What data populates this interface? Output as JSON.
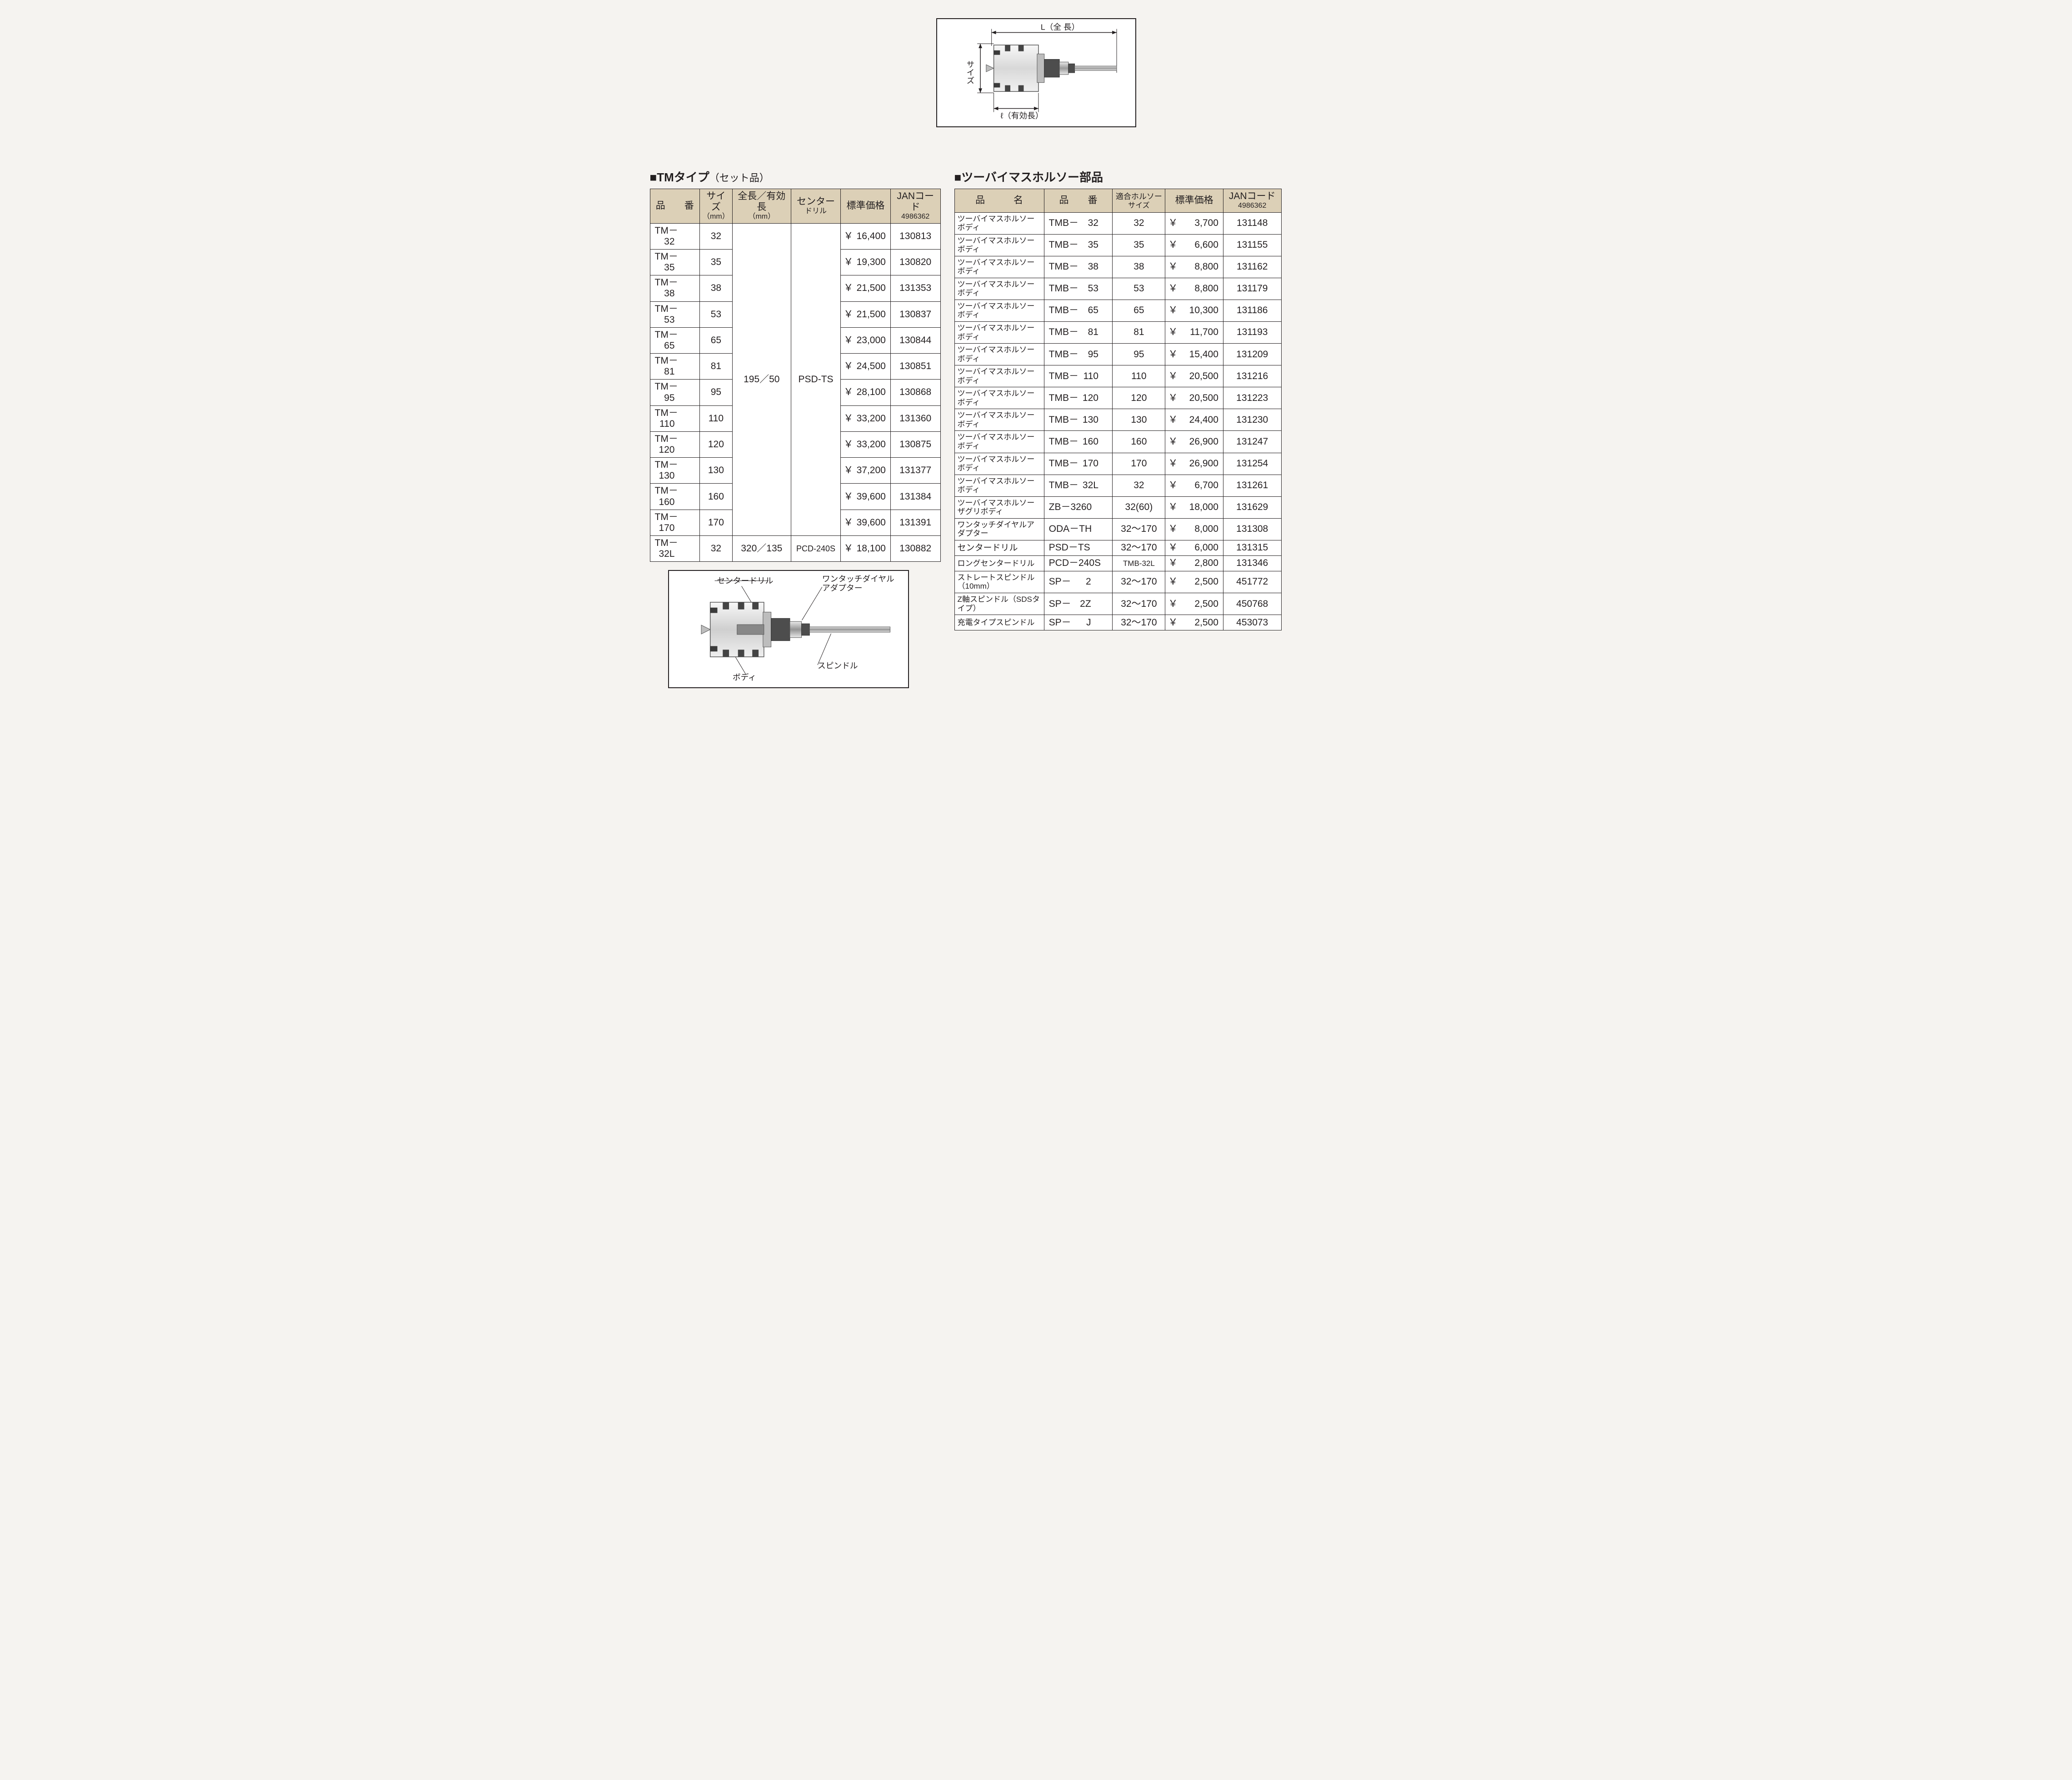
{
  "colors": {
    "page_bg": "#f5f3f0",
    "header_bg": "#dcd0b7",
    "border": "#231f20",
    "text": "#231f20",
    "cell_bg": "#ffffff"
  },
  "topDiagram": {
    "labels": {
      "length": "L（全 長）",
      "size": "サイズ",
      "effective": "ℓ（有効長）"
    }
  },
  "bottomDiagram": {
    "labels": {
      "centerDrill": "センタードリル",
      "oneTouch": "ワンタッチダイヤル\nアダプター",
      "spindle": "スピンドル",
      "body": "ボディ"
    }
  },
  "tmSection": {
    "title": "TMタイプ",
    "subtitle": "（セット品）",
    "headers": {
      "code": "品　　番",
      "size": "サイズ",
      "size_sub": "（mm）",
      "length": "全長／有効長",
      "length_sub": "（mm）",
      "drill": "センター",
      "drill_sub": "ドリル",
      "price": "標準価格",
      "jan": "JANコード",
      "jan_sub": "4986362"
    },
    "shared": {
      "length": "195／50",
      "drill": "PSD-TS"
    },
    "rows": [
      {
        "codePre": "TM－",
        "codeNum": "32",
        "size": "32",
        "price": "16,400",
        "jan": "130813"
      },
      {
        "codePre": "TM－",
        "codeNum": "35",
        "size": "35",
        "price": "19,300",
        "jan": "130820"
      },
      {
        "codePre": "TM－",
        "codeNum": "38",
        "size": "38",
        "price": "21,500",
        "jan": "131353"
      },
      {
        "codePre": "TM－",
        "codeNum": "53",
        "size": "53",
        "price": "21,500",
        "jan": "130837"
      },
      {
        "codePre": "TM－",
        "codeNum": "65",
        "size": "65",
        "price": "23,000",
        "jan": "130844"
      },
      {
        "codePre": "TM－",
        "codeNum": "81",
        "size": "81",
        "price": "24,500",
        "jan": "130851"
      },
      {
        "codePre": "TM－",
        "codeNum": "95",
        "size": "95",
        "price": "28,100",
        "jan": "130868"
      },
      {
        "codePre": "TM－",
        "codeNum": "110",
        "size": "110",
        "price": "33,200",
        "jan": "131360"
      },
      {
        "codePre": "TM－",
        "codeNum": "120",
        "size": "120",
        "price": "33,200",
        "jan": "130875"
      },
      {
        "codePre": "TM－",
        "codeNum": "130",
        "size": "130",
        "price": "37,200",
        "jan": "131377"
      },
      {
        "codePre": "TM－",
        "codeNum": "160",
        "size": "160",
        "price": "39,600",
        "jan": "131384"
      },
      {
        "codePre": "TM－",
        "codeNum": "170",
        "size": "170",
        "price": "39,600",
        "jan": "131391"
      }
    ],
    "lastRow": {
      "codePre": "TM－",
      "codeNum": "32L",
      "size": "32",
      "length": "320／135",
      "drill": "PCD-240S",
      "price": "18,100",
      "jan": "130882"
    }
  },
  "partsSection": {
    "title": "ツーバイマスホルソー部品",
    "headers": {
      "name": "品　　　名",
      "code": "品　　番",
      "fit": "適合ホルソー",
      "fit_sub": "サイズ",
      "price": "標準価格",
      "jan": "JANコード",
      "jan_sub": "4986362"
    },
    "rows": [
      {
        "name": "ツーバイマスホルソーボディ",
        "codePre": "TMB－",
        "codeNum": "32",
        "fit": "32",
        "price": "3,700",
        "jan": "131148"
      },
      {
        "name": "ツーバイマスホルソーボディ",
        "codePre": "TMB－",
        "codeNum": "35",
        "fit": "35",
        "price": "6,600",
        "jan": "131155"
      },
      {
        "name": "ツーバイマスホルソーボディ",
        "codePre": "TMB－",
        "codeNum": "38",
        "fit": "38",
        "price": "8,800",
        "jan": "131162"
      },
      {
        "name": "ツーバイマスホルソーボディ",
        "codePre": "TMB－",
        "codeNum": "53",
        "fit": "53",
        "price": "8,800",
        "jan": "131179"
      },
      {
        "name": "ツーバイマスホルソーボディ",
        "codePre": "TMB－",
        "codeNum": "65",
        "fit": "65",
        "price": "10,300",
        "jan": "131186"
      },
      {
        "name": "ツーバイマスホルソーボディ",
        "codePre": "TMB－",
        "codeNum": "81",
        "fit": "81",
        "price": "11,700",
        "jan": "131193"
      },
      {
        "name": "ツーバイマスホルソーボディ",
        "codePre": "TMB－",
        "codeNum": "95",
        "fit": "95",
        "price": "15,400",
        "jan": "131209"
      },
      {
        "name": "ツーバイマスホルソーボディ",
        "codePre": "TMB－",
        "codeNum": "110",
        "fit": "110",
        "price": "20,500",
        "jan": "131216"
      },
      {
        "name": "ツーバイマスホルソーボディ",
        "codePre": "TMB－",
        "codeNum": "120",
        "fit": "120",
        "price": "20,500",
        "jan": "131223"
      },
      {
        "name": "ツーバイマスホルソーボディ",
        "codePre": "TMB－",
        "codeNum": "130",
        "fit": "130",
        "price": "24,400",
        "jan": "131230"
      },
      {
        "name": "ツーバイマスホルソーボディ",
        "codePre": "TMB－",
        "codeNum": "160",
        "fit": "160",
        "price": "26,900",
        "jan": "131247"
      },
      {
        "name": "ツーバイマスホルソーボディ",
        "codePre": "TMB－",
        "codeNum": "170",
        "fit": "170",
        "price": "26,900",
        "jan": "131254"
      },
      {
        "name": "ツーバイマスホルソーボディ",
        "codePre": "TMB－",
        "codeNum": "32L",
        "fit": "32",
        "price": "6,700",
        "jan": "131261"
      },
      {
        "name": "ツーバイマスホルソーザグリボディ",
        "codeFull": "ZB－3260",
        "fit": "32(60)",
        "price": "18,000",
        "jan": "131629"
      },
      {
        "name": "ワンタッチダイヤルアダプター",
        "codeFull": "ODA－TH",
        "fit": "32～170",
        "price": "8,000",
        "jan": "131308"
      },
      {
        "name": "センタードリル",
        "codeFull": "PSD－TS",
        "fit": "32～170",
        "price": "6,000",
        "jan": "131315"
      },
      {
        "name": "ロングセンタードリル",
        "codeFull": "PCD－240S",
        "fit": "TMB-32L",
        "price": "2,800",
        "jan": "131346",
        "fitSmall": true
      },
      {
        "name": "ストレートスピンドル（10mm）",
        "codePre": "SP－",
        "codeNum": "2",
        "fit": "32～170",
        "price": "2,500",
        "jan": "451772"
      },
      {
        "name": "Z軸スピンドル（SDSタイプ）",
        "codePre": "SP－",
        "codeNum": "2Z",
        "fit": "32～170",
        "price": "2,500",
        "jan": "450768"
      },
      {
        "name": "充電タイプスピンドル",
        "codePre": "SP－",
        "codeNum": "J",
        "fit": "32～170",
        "price": "2,500",
        "jan": "453073"
      }
    ]
  }
}
